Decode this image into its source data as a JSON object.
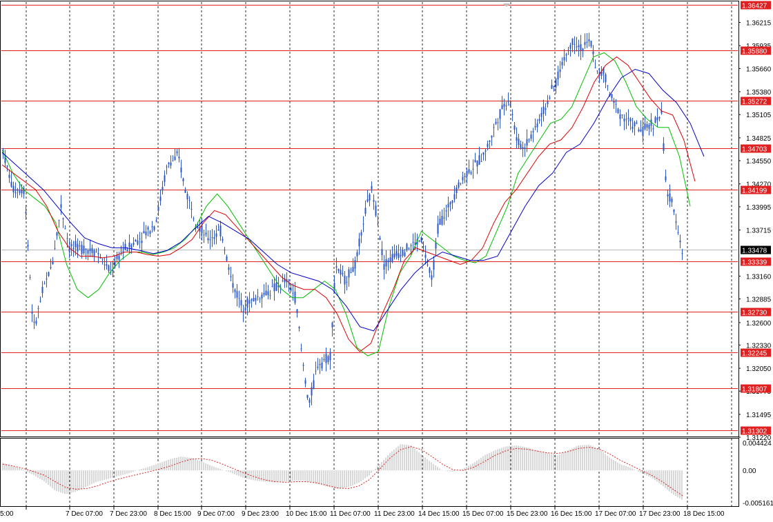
{
  "chart_data": {
    "type": "candlestick",
    "main_panel": {
      "price_axis_labels": [
        "1.36215",
        "1.35935",
        "1.35660",
        "1.35380",
        "1.35105",
        "1.34825",
        "1.34550",
        "1.34270",
        "1.33995",
        "1.33715",
        "1.33160",
        "1.32885",
        "1.32600",
        "1.32330",
        "1.32050",
        "1.31775",
        "1.31495",
        "1.31220"
      ],
      "ylim": [
        1.3122,
        1.3646
      ],
      "current_price": "1.33478",
      "horizontal_levels": [
        "1.36427",
        "1.35880",
        "1.35272",
        "1.34703",
        "1.34199",
        "1.33339",
        "1.32730",
        "1.32245",
        "1.31807",
        "1.31302"
      ],
      "moving_averages": [
        {
          "color": "#00c000",
          "values": [
            1.3468,
            1.344,
            1.342,
            1.341,
            1.34,
            1.338,
            1.333,
            1.33,
            1.329,
            1.33,
            1.332,
            1.3335,
            1.3345,
            1.3345,
            1.3342,
            1.3345,
            1.335,
            1.336,
            1.3375,
            1.34,
            1.3415,
            1.34,
            1.338,
            1.336,
            1.334,
            1.332,
            1.33,
            1.329,
            1.329,
            1.33,
            1.331,
            1.33,
            1.327,
            1.323,
            1.322,
            1.3225,
            1.328,
            1.332,
            1.334,
            1.337,
            1.336,
            1.335,
            1.334,
            1.3335,
            1.3332,
            1.334,
            1.337,
            1.34,
            1.344,
            1.346,
            1.348,
            1.35,
            1.3505,
            1.352,
            1.355,
            1.358,
            1.3585,
            1.3575,
            1.355,
            1.352,
            1.3505,
            1.3495,
            1.3495,
            1.346,
            1.34
          ]
        },
        {
          "color": "#dd0000",
          "values": [
            1.345,
            1.344,
            1.343,
            1.342,
            1.34,
            1.337,
            1.335,
            1.334,
            1.334,
            1.3338,
            1.334,
            1.3345,
            1.3345,
            1.3342,
            1.334,
            1.3342,
            1.335,
            1.336,
            1.338,
            1.3395,
            1.339,
            1.3375,
            1.336,
            1.3345,
            1.333,
            1.3315,
            1.3305,
            1.33,
            1.33,
            1.329,
            1.327,
            1.324,
            1.3225,
            1.3235,
            1.327,
            1.33,
            1.3335,
            1.335,
            1.3345,
            1.334,
            1.3335,
            1.333,
            1.3335,
            1.335,
            1.338,
            1.3405,
            1.342,
            1.344,
            1.346,
            1.3475,
            1.348,
            1.3495,
            1.352,
            1.355,
            1.357,
            1.358,
            1.357,
            1.355,
            1.353,
            1.3515,
            1.351,
            1.348,
            1.343
          ]
        },
        {
          "color": "#0000cc",
          "values": [
            1.3465,
            1.345,
            1.3435,
            1.342,
            1.34,
            1.338,
            1.3362,
            1.3355,
            1.335,
            1.335,
            1.3347,
            1.3343,
            1.3347,
            1.3357,
            1.3373,
            1.3388,
            1.338,
            1.337,
            1.336,
            1.3345,
            1.333,
            1.332,
            1.3315,
            1.331,
            1.33,
            1.328,
            1.3255,
            1.325,
            1.3275,
            1.33,
            1.332,
            1.3335,
            1.3345,
            1.334,
            1.3335,
            1.3335,
            1.334,
            1.337,
            1.34,
            1.3425,
            1.344,
            1.3465,
            1.3475,
            1.35,
            1.353,
            1.3555,
            1.3565,
            1.356,
            1.354,
            1.3525,
            1.35,
            1.346
          ]
        }
      ]
    },
    "oscillator_panel": {
      "axis_labels": [
        "0.004424",
        "0.00",
        "-0.005161"
      ],
      "ylim": [
        -0.005161,
        0.004424
      ],
      "histogram": [
        0.0012,
        0.0007,
        0.0001,
        -0.0008,
        -0.0018,
        -0.0032,
        -0.0038,
        -0.0034,
        -0.0026,
        -0.0018,
        -0.0014,
        -0.0009,
        -0.0005,
        0.0001,
        0.0006,
        0.0012,
        0.0018,
        0.0022,
        0.002,
        0.0014,
        0.0007,
        0.0001,
        -0.0005,
        -0.0012,
        -0.0016,
        -0.0018,
        -0.0019,
        -0.0018,
        -0.0016,
        -0.0017,
        -0.0021,
        -0.0026,
        -0.003,
        -0.0027,
        -0.002,
        -0.0008,
        0.001,
        0.0028,
        0.0042,
        0.004,
        0.0025,
        0.0012,
        0.0,
        -0.0002,
        0.0003,
        0.0012,
        0.0024,
        0.0032,
        0.0038,
        0.004,
        0.0037,
        0.0032,
        0.0028,
        0.0024,
        0.0032,
        0.004,
        0.0041,
        0.0034,
        0.002,
        0.001,
        0.0004,
        -0.0004,
        -0.0012,
        -0.0024,
        -0.0038,
        -0.0048
      ],
      "signal": [
        0.001,
        0.0007,
        0.0003,
        -0.0002,
        -0.0008,
        -0.0018,
        -0.0027,
        -0.003,
        -0.0029,
        -0.0025,
        -0.0019,
        -0.0014,
        -0.001,
        -0.0006,
        -0.0002,
        0.0002,
        0.0007,
        0.0013,
        0.0018,
        0.0019,
        0.0016,
        0.001,
        0.0003,
        -0.0004,
        -0.001,
        -0.0015,
        -0.0018,
        -0.0019,
        -0.0018,
        -0.0018,
        -0.002,
        -0.0024,
        -0.0028,
        -0.0029,
        -0.0025,
        -0.0015,
        0.0002,
        0.002,
        0.0033,
        0.0038,
        0.0033,
        0.0022,
        0.001,
        0.0001,
        0.0,
        0.0005,
        0.0014,
        0.0024,
        0.0031,
        0.0035,
        0.0034,
        0.0031,
        0.0028,
        0.0027,
        0.003,
        0.0035,
        0.0037,
        0.0034,
        0.0026,
        0.0016,
        0.0008,
        0.0,
        -0.0008,
        -0.0018,
        -0.003,
        -0.0041
      ]
    },
    "x_tick_labels": [
      "5:00",
      "7 Dec 07:00",
      "7 Dec 23:00",
      "8 Dec 15:00",
      "9 Dec 07:00",
      "9 Dec 23:00",
      "10 Dec 15:00",
      "11 Dec 07:00",
      "11 Dec 23:00",
      "14 Dec 15:00",
      "15 Dec 07:00",
      "15 Dec 23:00",
      "16 Dec 15:00",
      "17 Dec 07:00",
      "17 Dec 23:00",
      "18 Dec 15:00"
    ],
    "colors": {
      "candles": "#2a55c8",
      "levels": "#e02020",
      "level_label_bg": "#e02020",
      "current_label_bg": "#000000",
      "signal": "#dd2222",
      "histogram": "#b0b0b0",
      "grid": "#000000"
    }
  }
}
